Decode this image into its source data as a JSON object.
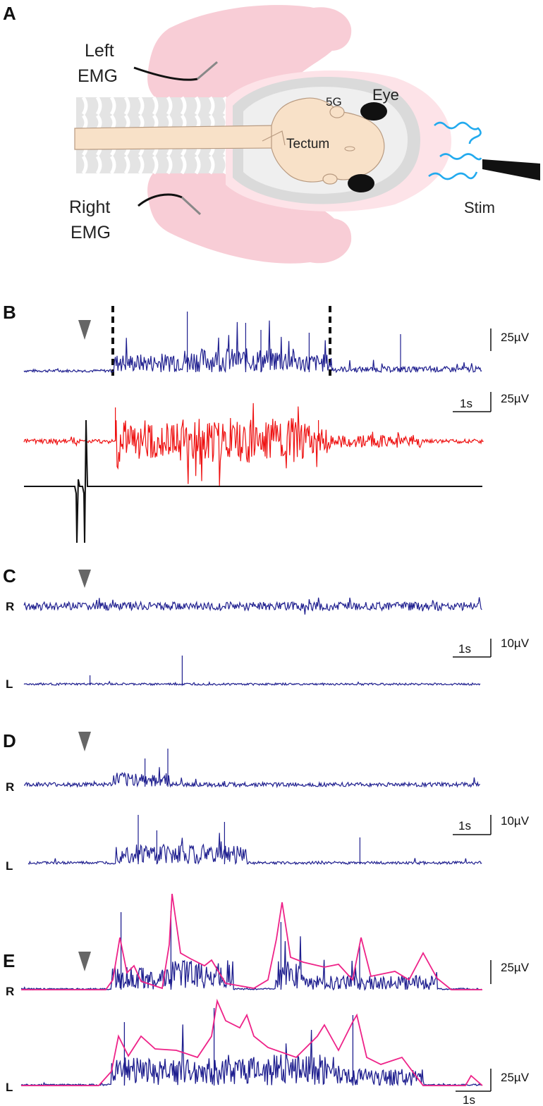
{
  "panels": {
    "A": {
      "letter": "A",
      "labels": {
        "left_emg_1": "Left",
        "left_emg_2": "EMG",
        "right_emg_1": "Right",
        "right_emg_2": "EMG",
        "ganglion": "5G",
        "eye": "Eye",
        "tectum": "Tectum",
        "stim": "Stim"
      }
    },
    "B": {
      "letter": "B",
      "scale_top": "25µV",
      "scale_mid_time": "1s",
      "scale_mid_amp": "25µV"
    },
    "C": {
      "letter": "C",
      "right_label": "R",
      "left_label": "L",
      "scale_time": "1s",
      "scale_amp": "10µV"
    },
    "D": {
      "letter": "D",
      "right_label": "R",
      "left_label": "L",
      "scale_time": "1s",
      "scale_amp": "10µV"
    },
    "E": {
      "letter": "E",
      "right_label": "R",
      "left_label": "L",
      "scale_top": "25µV",
      "scale_bottom": "25µV",
      "scale_time": "1s"
    }
  },
  "colors": {
    "emg_trace": "#1f1f8f",
    "red_trace": "#ee1111",
    "envelope": "#ee2288",
    "stim_waves": "#22aaee",
    "body_pink": "#f8cdd6",
    "brain_tan": "#f8e1c8",
    "arrowhead": "#666666"
  }
}
